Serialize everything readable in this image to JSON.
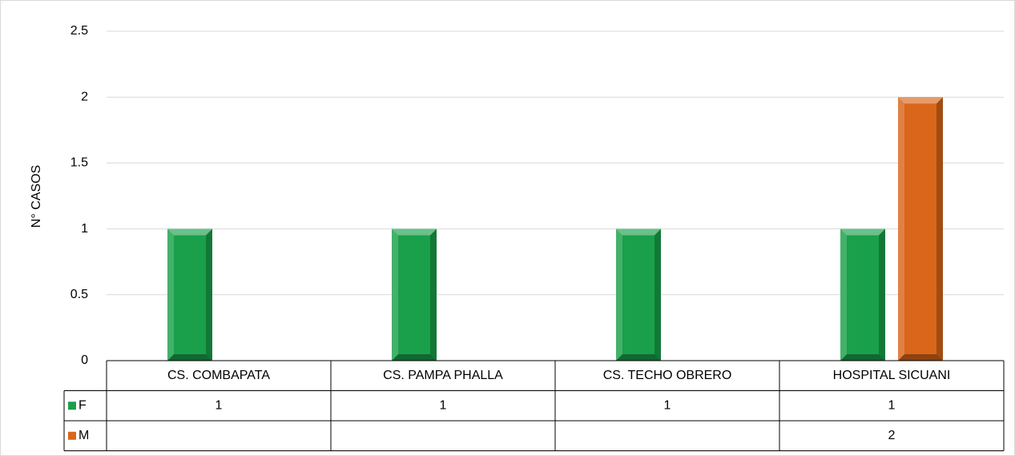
{
  "chart_data": {
    "type": "bar",
    "y_label": "N° CASOS",
    "categories": [
      "CS. COMBAPATA",
      "CS. PAMPA PHALLA",
      "CS. TECHO OBRERO",
      "HOSPITAL SICUANI"
    ],
    "series": [
      {
        "name": "F",
        "color": "#1aa04a",
        "values": [
          1,
          1,
          1,
          1
        ]
      },
      {
        "name": "M",
        "color": "#d9661a",
        "values": [
          null,
          null,
          null,
          2
        ]
      }
    ],
    "ylim": [
      0,
      2.5
    ],
    "yticks": [
      0,
      0.5,
      1,
      1.5,
      2,
      2.5
    ],
    "grid": true,
    "legend": "data-table"
  }
}
